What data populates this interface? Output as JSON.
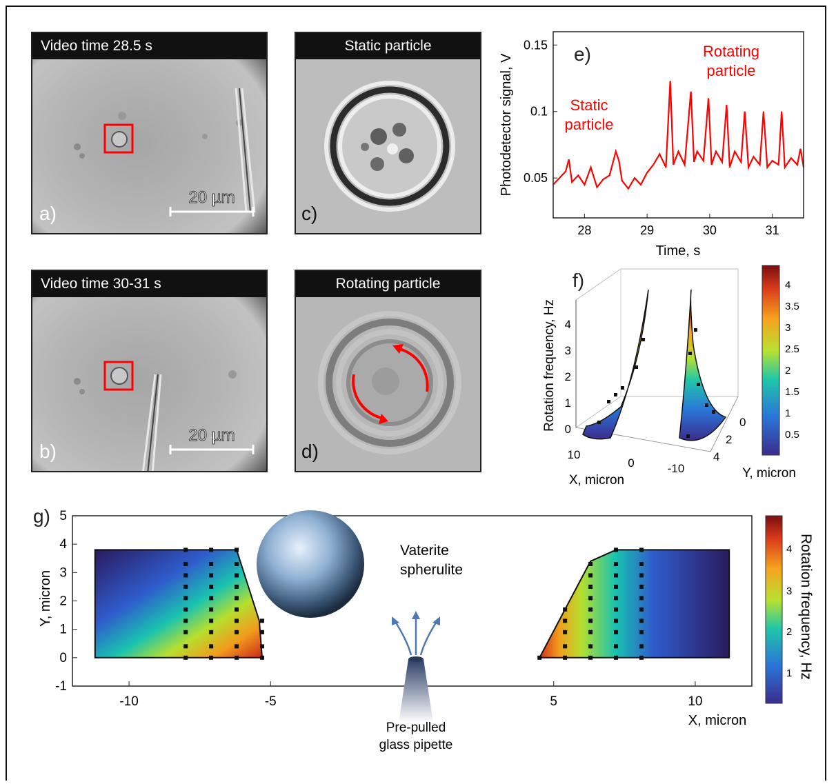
{
  "colors": {
    "accent_red": "#ff0000",
    "dark": "#111111"
  },
  "panel_a": {
    "header": "Video time 28.5 s",
    "letter": "a)",
    "scalebar": "20 µm"
  },
  "panel_b": {
    "header": "Video time 30-31 s",
    "letter": "b)",
    "scalebar": "20 µm"
  },
  "panel_c": {
    "header": "Static particle",
    "letter": "c)"
  },
  "panel_d": {
    "header": "Rotating particle",
    "letter": "d)"
  },
  "panel_e": {
    "letter": "e)",
    "annotation_static": [
      "Static",
      "particle"
    ],
    "annotation_rotating": [
      "Rotating",
      "particle"
    ]
  },
  "panel_f": {
    "letter": "f)",
    "zlabel": "Rotation frequency, Hz",
    "xlabel": "X, micron",
    "ylabel": "Y, micron",
    "z_ticks": [
      "0",
      "1",
      "2",
      "3",
      "4"
    ],
    "x_ticks": [
      "10",
      "0",
      "-10"
    ],
    "y_ticks": [
      "0",
      "2",
      "4"
    ],
    "colorbar_ticks": [
      "4",
      "3.5",
      "3",
      "2.5",
      "2",
      "1.5",
      "1",
      "0.5"
    ]
  },
  "panel_g": {
    "letter": "g)",
    "sphere_label": [
      "Vaterite",
      "spherulite"
    ],
    "pipette_label": [
      "Pre-pulled",
      "glass pipette"
    ],
    "colorbar_label": "Rotation frequency, Hz",
    "colorbar_ticks": [
      "4",
      "3",
      "2",
      "1"
    ]
  },
  "chart_data": [
    {
      "type": "line",
      "xlabel": "Time, s",
      "ylabel": "Photodetector signal, V",
      "xlim": [
        27.5,
        31.5
      ],
      "ylim": [
        0.02,
        0.16
      ],
      "x_ticks": [
        28,
        29,
        30,
        31
      ],
      "y_ticks": [
        0.05,
        0.1,
        0.15
      ],
      "y_tick_labels": [
        "0.05",
        "0.1",
        "0.15"
      ],
      "series": [
        {
          "color": "#ff0000",
          "x": [
            27.5,
            27.6,
            27.7,
            27.75,
            27.8,
            27.9,
            28.0,
            28.1,
            28.2,
            28.3,
            28.4,
            28.5,
            28.55,
            28.6,
            28.7,
            28.8,
            28.9,
            29.0,
            29.1,
            29.2,
            29.3,
            29.37,
            29.42,
            29.5,
            29.6,
            29.7,
            29.75,
            29.8,
            29.9,
            29.98,
            30.03,
            30.1,
            30.2,
            30.27,
            30.32,
            30.4,
            30.5,
            30.56,
            30.62,
            30.7,
            30.8,
            30.86,
            30.92,
            31.0,
            31.1,
            31.15,
            31.2,
            31.3,
            31.4,
            31.45,
            31.5
          ],
          "values": [
            0.045,
            0.05,
            0.055,
            0.064,
            0.047,
            0.052,
            0.045,
            0.058,
            0.043,
            0.049,
            0.052,
            0.07,
            0.063,
            0.048,
            0.042,
            0.05,
            0.045,
            0.054,
            0.06,
            0.068,
            0.058,
            0.123,
            0.06,
            0.07,
            0.06,
            0.115,
            0.062,
            0.07,
            0.063,
            0.11,
            0.06,
            0.07,
            0.062,
            0.105,
            0.058,
            0.07,
            0.062,
            0.1,
            0.058,
            0.066,
            0.06,
            0.1,
            0.058,
            0.063,
            0.06,
            0.1,
            0.058,
            0.065,
            0.06,
            0.072,
            0.058
          ]
        }
      ]
    },
    {
      "type": "heatmap",
      "xlabel": "X, micron",
      "ylabel": "Y, micron",
      "xlim": [
        -12,
        12
      ],
      "ylim": [
        -1,
        5
      ],
      "x_ticks": [
        -10,
        -5,
        5,
        10
      ],
      "y_ticks": [
        -1,
        0,
        1,
        2,
        3,
        4,
        5
      ],
      "colorbar_range": [
        0,
        4.5
      ],
      "measurement_columns_x": [
        -8.0,
        -7.1,
        -6.2,
        -5.3,
        5.4,
        6.3,
        7.2,
        8.1
      ],
      "measurement_rows_y": [
        0.0,
        0.4,
        0.9,
        1.3,
        1.7,
        2.1,
        2.5,
        2.9,
        3.3,
        3.8
      ]
    },
    {
      "type": "scatter",
      "title": "",
      "xlabel": "X, micron",
      "ylabel": "Y, micron",
      "zlabel": "Rotation frequency, Hz",
      "zlim": [
        0,
        4.5
      ]
    }
  ]
}
